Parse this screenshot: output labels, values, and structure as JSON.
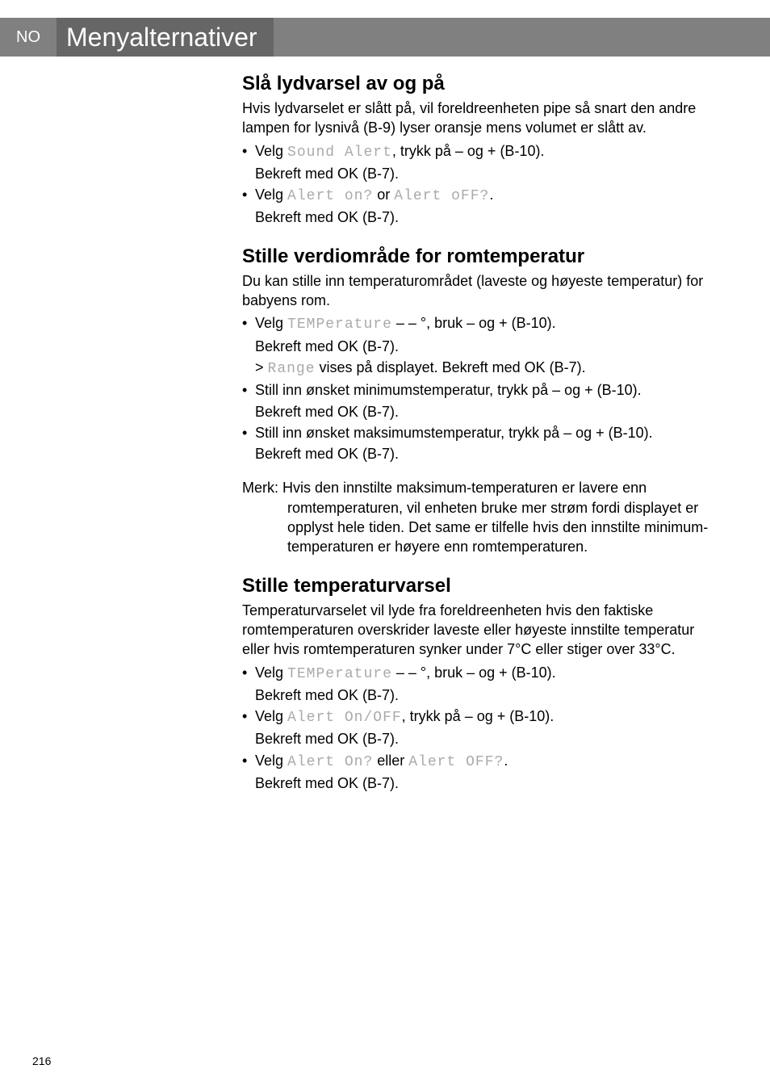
{
  "header": {
    "lang": "NO",
    "title": "Menyalternativer"
  },
  "sections": [
    {
      "heading": "Slå lydvarsel av og på",
      "intro": "Hvis lydvarselet er slått på, vil foreldreenheten pipe så snart den andre lampen for lysnivå (B-9) lyser oransje mens volumet er slått av.",
      "items": [
        {
          "pre": "Velg ",
          "lcd": "Sound Alert",
          "post": ", trykk på – og + (B-10).",
          "sub": "Bekreft med OK (B-7)."
        },
        {
          "pre": "Velg ",
          "lcd": "Alert on?",
          "mid": " or ",
          "lcd2": "Alert oFF?",
          "post": ".",
          "sub": "Bekreft med OK (B-7)."
        }
      ]
    },
    {
      "heading": "Stille verdiområde for romtemperatur",
      "intro": "Du kan stille inn temperaturområdet (laveste og høyeste temperatur) for babyens rom.",
      "items": [
        {
          "pre": "Velg ",
          "lcd": "TEMPerature",
          "post": "  – – °, bruk – og + (B-10).",
          "sub": "Bekreft med OK (B-7).",
          "gt": {
            "pre": "> ",
            "lcd": "Range",
            "post": " vises på displayet. Bekreft med OK (B-7)."
          }
        },
        {
          "pre": "Still inn ønsket minimumstemperatur, trykk på – og + (B-10).",
          "sub": "Bekreft med OK (B-7)."
        },
        {
          "pre": "Still inn ønsket maksimumstemperatur, trykk på – og + (B-10).",
          "sub": "Bekreft med OK (B-7)."
        }
      ],
      "note": "Merk: Hvis den innstilte maksimum-temperaturen er lavere enn romtemperaturen, vil enheten bruke mer strøm fordi displayet er opplyst hele tiden. Det same er tilfelle hvis den innstilte minimum-temperaturen er høyere enn romtemperaturen."
    },
    {
      "heading": "Stille temperaturvarsel",
      "intro": "Temperaturvarselet vil lyde fra foreldreenheten hvis den faktiske romtemperaturen overskrider laveste eller høyeste innstilte temperatur eller hvis romtemperaturen synker under 7°C eller stiger over 33°C.",
      "items": [
        {
          "pre": "Velg ",
          "lcd": "TEMPerature",
          "post": "  – – °, bruk – og + (B-10).",
          "sub": "Bekreft med OK (B-7)."
        },
        {
          "pre": "Velg ",
          "lcd": "Alert On/OFF",
          "post": ", trykk på – og + (B-10).",
          "sub": "Bekreft med OK (B-7)."
        },
        {
          "pre": "Velg ",
          "lcd": "Alert On?",
          "mid": " eller ",
          "lcd2": "Alert OFF?",
          "post": ".",
          "sub": "Bekreft med OK (B-7)."
        }
      ]
    }
  ],
  "pagenum": "216"
}
